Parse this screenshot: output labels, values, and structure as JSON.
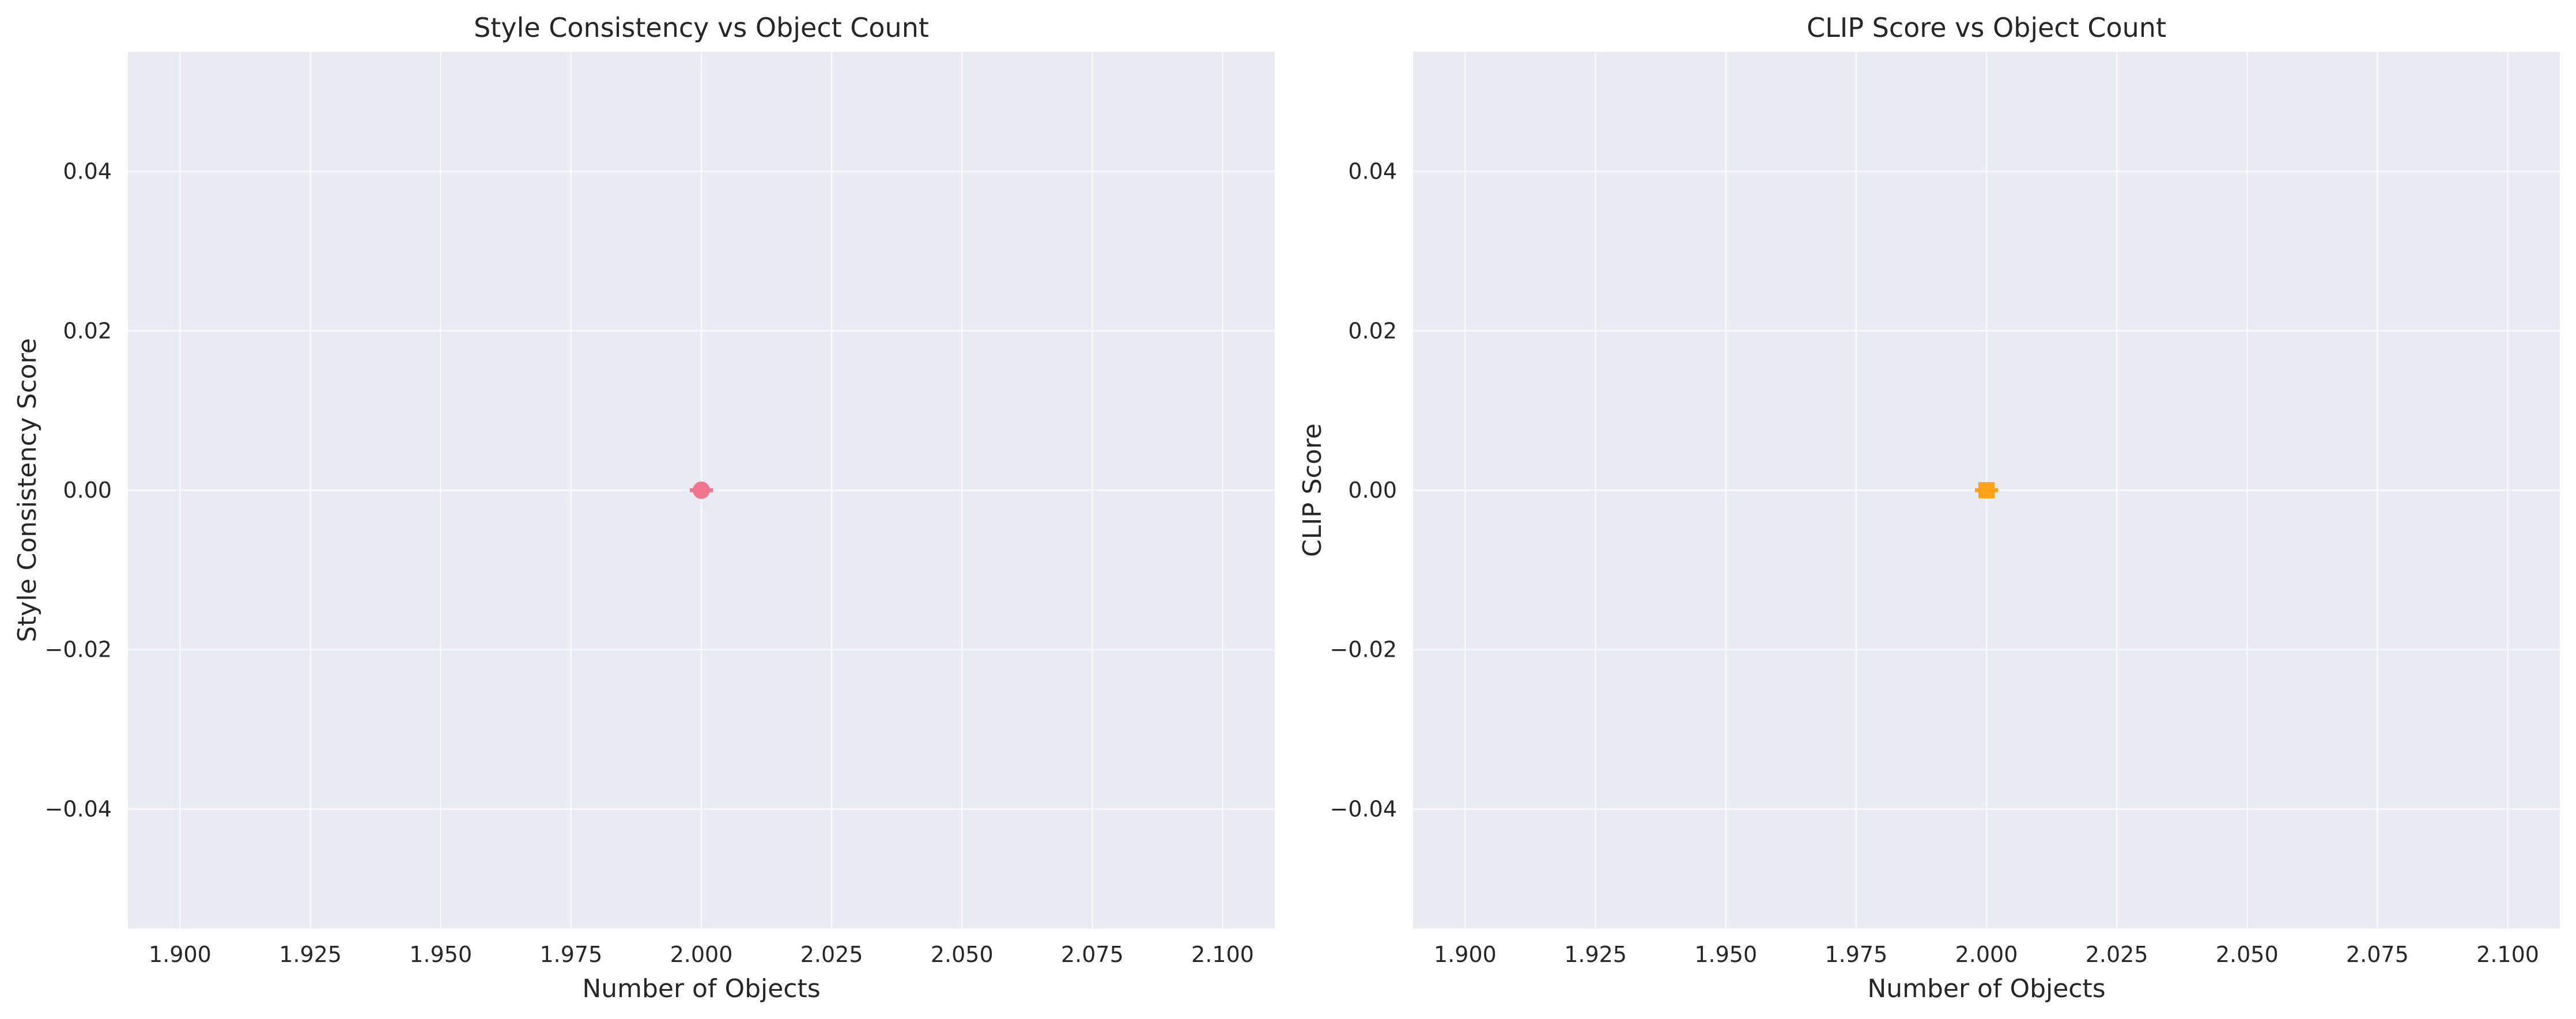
{
  "chart_data": [
    {
      "type": "scatter",
      "title": "Style Consistency vs Object Count",
      "xlabel": "Number of Objects",
      "ylabel": "Style Consistency Score",
      "xlim": [
        1.89,
        2.11
      ],
      "ylim": [
        -0.055,
        0.055
      ],
      "xticks": [
        "1.900",
        "1.925",
        "1.950",
        "1.975",
        "2.000",
        "2.025",
        "2.050",
        "2.075",
        "2.100"
      ],
      "yticks": [
        "−0.04",
        "−0.02",
        "0.00",
        "0.02",
        "0.04"
      ],
      "grid": true,
      "series": [
        {
          "x": [
            2.0
          ],
          "y": [
            0.0
          ],
          "marker": "circle",
          "color": "#f0758c",
          "error_bar": true
        }
      ]
    },
    {
      "type": "scatter",
      "title": "CLIP Score vs Object Count",
      "xlabel": "Number of Objects",
      "ylabel": "CLIP Score",
      "xlim": [
        1.89,
        2.11
      ],
      "ylim": [
        -0.055,
        0.055
      ],
      "xticks": [
        "1.900",
        "1.925",
        "1.950",
        "1.975",
        "2.000",
        "2.025",
        "2.050",
        "2.075",
        "2.100"
      ],
      "yticks": [
        "−0.04",
        "−0.02",
        "0.00",
        "0.02",
        "0.04"
      ],
      "grid": true,
      "series": [
        {
          "x": [
            2.0
          ],
          "y": [
            0.0
          ],
          "marker": "square",
          "color": "#ffa21a",
          "error_bar": true
        }
      ]
    }
  ],
  "colors": {
    "plot_background": "#eaeaf2",
    "grid": "#ffffff",
    "text": "#262626"
  }
}
